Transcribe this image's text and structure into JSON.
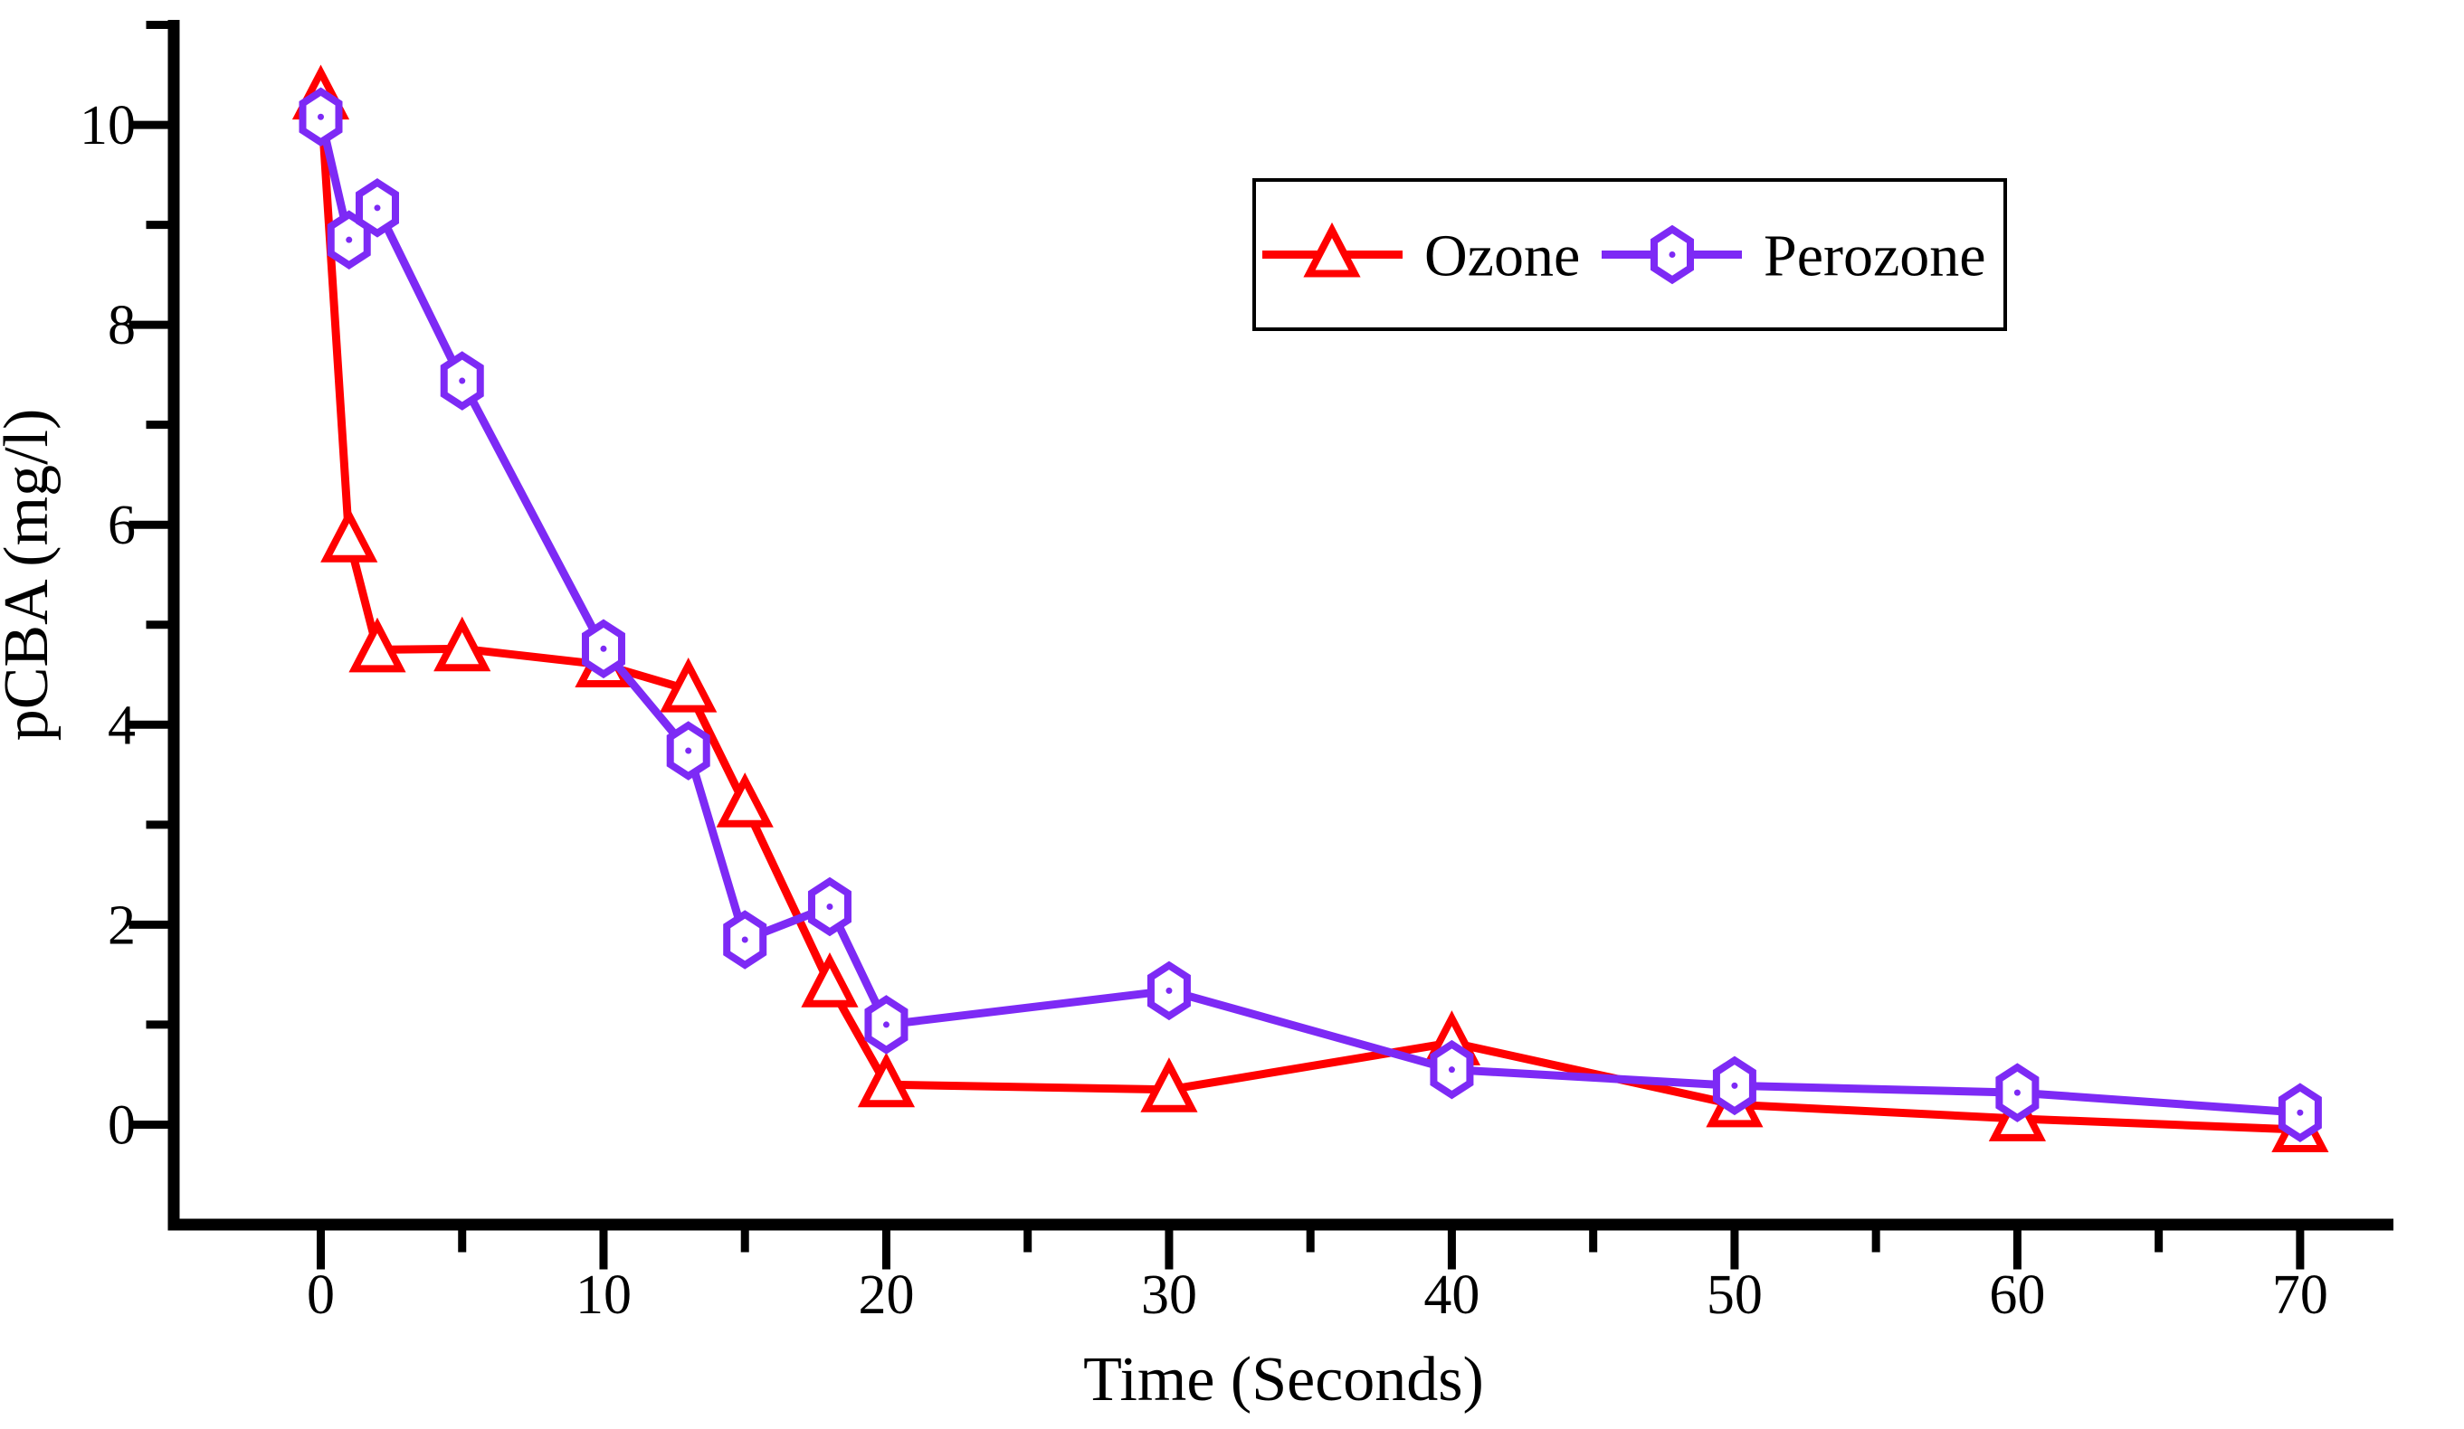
{
  "figure": {
    "background": "#ffffff",
    "axis_color": "#000000"
  },
  "chart_data": {
    "type": "line",
    "title": "",
    "xlabel": "Time (Seconds)",
    "ylabel": "pCBA (mg/l)",
    "xlim": [
      -5.2,
      73.3
    ],
    "ylim": [
      -1.0,
      11.05
    ],
    "x_major_ticks": [
      0,
      10,
      20,
      30,
      40,
      50,
      60,
      70
    ],
    "x_minor_ticks": [
      5,
      15,
      25,
      35,
      45,
      55,
      65
    ],
    "y_major_ticks": [
      0,
      2,
      4,
      6,
      8,
      10
    ],
    "y_minor_ticks": [
      1,
      3,
      5,
      7,
      9,
      11
    ],
    "grid": false,
    "legend": {
      "position": "top-center-inside",
      "border_color": "#000000",
      "background": "#ffffff"
    },
    "series": [
      {
        "name": "Ozone",
        "color": "#ff0000",
        "marker": "triangle-open",
        "x": [
          0,
          1,
          2,
          5,
          10,
          13,
          15,
          18,
          20,
          30,
          40,
          50,
          60,
          70
        ],
        "y": [
          10.28,
          5.85,
          4.75,
          4.76,
          4.6,
          4.35,
          3.2,
          1.4,
          0.4,
          0.35,
          0.82,
          0.2,
          0.06,
          -0.05
        ]
      },
      {
        "name": "Perozone",
        "color": "#7d2af5",
        "marker": "hexagon-open",
        "x": [
          0,
          1,
          2,
          5,
          10,
          13,
          15,
          18,
          20,
          30,
          40,
          50,
          60,
          70
        ],
        "y": [
          10.08,
          8.85,
          9.17,
          7.44,
          4.76,
          3.74,
          1.85,
          2.18,
          1.0,
          1.34,
          0.55,
          0.39,
          0.32,
          0.12
        ]
      }
    ]
  }
}
